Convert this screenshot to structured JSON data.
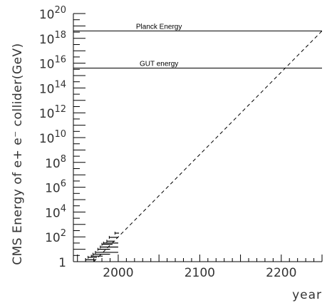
{
  "chart_data": {
    "type": "line",
    "title": "",
    "xlabel": "year",
    "ylabel": "CMS Energy of e+ e⁻ collider(GeV)",
    "xlim": [
      1945,
      2250
    ],
    "ylim_log10": [
      0,
      20
    ],
    "y_scale": "log",
    "grid": false,
    "x_ticks": [
      {
        "value": 2000,
        "label": "2000"
      },
      {
        "value": 2100,
        "label": "2100"
      },
      {
        "value": 2200,
        "label": "2200"
      }
    ],
    "y_ticks": [
      {
        "exp": 0,
        "base": "1",
        "sup": ""
      },
      {
        "exp": 2,
        "base": "10",
        "sup": "2"
      },
      {
        "exp": 4,
        "base": "10",
        "sup": "4"
      },
      {
        "exp": 6,
        "base": "10",
        "sup": "6"
      },
      {
        "exp": 8,
        "base": "10",
        "sup": "8"
      },
      {
        "exp": 10,
        "base": "10",
        "sup": "10"
      },
      {
        "exp": 12,
        "base": "10",
        "sup": "12"
      },
      {
        "exp": 14,
        "base": "10",
        "sup": "14"
      },
      {
        "exp": 16,
        "base": "10",
        "sup": "16"
      },
      {
        "exp": 18,
        "base": "10",
        "sup": "18"
      },
      {
        "exp": 20,
        "base": "10",
        "sup": "20"
      }
    ],
    "reference_lines": [
      {
        "label": "Planck Energy",
        "log10_value": 18.6
      },
      {
        "label": "GUT energy",
        "log10_value": 15.6
      }
    ],
    "trend_line": {
      "style": "dashed",
      "points": [
        [
          1970,
          0.0
        ],
        [
          2250,
          18.6
        ]
      ]
    },
    "colliders": [
      {
        "x_start": 1960,
        "x_end": 1972,
        "log10_energy": 0.15
      },
      {
        "x_start": 1963,
        "x_end": 1974,
        "log10_energy": 0.35
      },
      {
        "x_start": 1967,
        "x_end": 1981,
        "log10_energy": 0.45
      },
      {
        "x_start": 1969,
        "x_end": 1990,
        "log10_energy": 0.6
      },
      {
        "x_start": 1972,
        "x_end": 2000,
        "log10_energy": 0.75
      },
      {
        "x_start": 1975,
        "x_end": 1990,
        "log10_energy": 1.0
      },
      {
        "x_start": 1978,
        "x_end": 2000,
        "log10_energy": 1.18
      },
      {
        "x_start": 1980,
        "x_end": 1993,
        "log10_energy": 1.4
      },
      {
        "x_start": 1982,
        "x_end": 2000,
        "log10_energy": 1.5
      },
      {
        "x_start": 1986,
        "x_end": 1996,
        "log10_energy": 1.65
      },
      {
        "x_start": 1989,
        "x_end": 2000,
        "log10_energy": 1.96
      },
      {
        "x_start": 1996,
        "x_end": 2001,
        "log10_energy": 2.3
      }
    ],
    "colors": {
      "axis": "#000000",
      "line": "#000000",
      "text": "#333333"
    }
  }
}
